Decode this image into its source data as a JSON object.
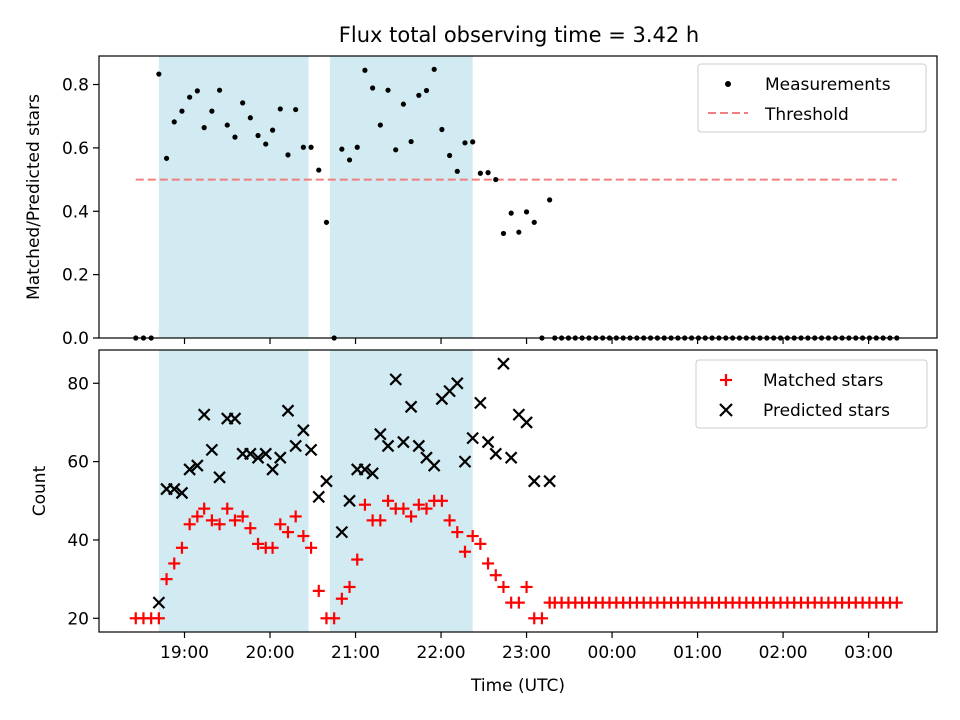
{
  "title": "Flux total observing time = 3.42 h",
  "colors": {
    "shade": "#add8e6",
    "threshold": "#f08080",
    "matched": "#ff0000",
    "predicted": "#000000",
    "measurement": "#000000"
  },
  "x_ticks": [
    "19:00",
    "20:00",
    "21:00",
    "22:00",
    "23:00",
    "00:00",
    "01:00",
    "02:00",
    "03:00"
  ],
  "chart_data": [
    {
      "type": "scatter",
      "ylabel": "Matched/Predicted stars",
      "xlabel": "",
      "x_unit": "hours after 18:00 UTC",
      "ylim": [
        0,
        0.89
      ],
      "yticks": [
        "0.0",
        "0.2",
        "0.4",
        "0.6",
        "0.8"
      ],
      "legend": [
        "Measurements",
        "Threshold"
      ],
      "legend_position": "top-right",
      "observing_windows": [
        [
          0.7,
          2.45
        ],
        [
          2.7,
          4.37
        ]
      ],
      "threshold": {
        "value": 0.5,
        "x_range": [
          0.43,
          9.33
        ]
      },
      "series": [
        {
          "name": "Measurements",
          "points": [
            [
              0.43,
              0.0
            ],
            [
              0.52,
              0.0
            ],
            [
              0.61,
              0.0
            ],
            [
              0.7,
              0.833
            ],
            [
              0.79,
              0.567
            ],
            [
              0.88,
              0.682
            ],
            [
              0.97,
              0.716
            ],
            [
              1.06,
              0.76
            ],
            [
              1.15,
              0.78
            ],
            [
              1.23,
              0.664
            ],
            [
              1.32,
              0.716
            ],
            [
              1.41,
              0.782
            ],
            [
              1.5,
              0.672
            ],
            [
              1.59,
              0.634
            ],
            [
              1.68,
              0.742
            ],
            [
              1.77,
              0.695
            ],
            [
              1.86,
              0.639
            ],
            [
              1.95,
              0.612
            ],
            [
              2.03,
              0.656
            ],
            [
              2.12,
              0.723
            ],
            [
              2.21,
              0.578
            ],
            [
              2.3,
              0.721
            ],
            [
              2.39,
              0.602
            ],
            [
              2.48,
              0.602
            ],
            [
              2.57,
              0.53
            ],
            [
              2.66,
              0.365
            ],
            [
              2.75,
              0.0
            ],
            [
              2.84,
              0.596
            ],
            [
              2.93,
              0.562
            ],
            [
              3.02,
              0.602
            ],
            [
              3.11,
              0.845
            ],
            [
              3.2,
              0.789
            ],
            [
              3.29,
              0.672
            ],
            [
              3.38,
              0.782
            ],
            [
              3.47,
              0.594
            ],
            [
              3.56,
              0.738
            ],
            [
              3.65,
              0.62
            ],
            [
              3.74,
              0.766
            ],
            [
              3.83,
              0.781
            ],
            [
              3.92,
              0.848
            ],
            [
              4.01,
              0.658
            ],
            [
              4.1,
              0.576
            ],
            [
              4.19,
              0.526
            ],
            [
              4.28,
              0.616
            ],
            [
              4.37,
              0.619
            ],
            [
              4.46,
              0.52
            ],
            [
              4.55,
              0.522
            ],
            [
              4.64,
              0.5
            ],
            [
              4.73,
              0.33
            ],
            [
              4.82,
              0.394
            ],
            [
              4.91,
              0.334
            ],
            [
              5.0,
              0.398
            ],
            [
              5.09,
              0.365
            ],
            [
              5.18,
              0.0
            ],
            [
              5.27,
              0.436
            ],
            [
              5.33,
              0.0
            ],
            [
              5.41,
              0.0
            ],
            [
              5.49,
              0.0
            ],
            [
              5.57,
              0.0
            ],
            [
              5.65,
              0.0
            ],
            [
              5.73,
              0.0
            ],
            [
              5.81,
              0.0
            ],
            [
              5.89,
              0.0
            ],
            [
              5.97,
              0.0
            ],
            [
              6.05,
              0.0
            ],
            [
              6.13,
              0.0
            ],
            [
              6.21,
              0.0
            ],
            [
              6.29,
              0.0
            ],
            [
              6.37,
              0.0
            ],
            [
              6.45,
              0.0
            ],
            [
              6.53,
              0.0
            ],
            [
              6.61,
              0.0
            ],
            [
              6.69,
              0.0
            ],
            [
              6.77,
              0.0
            ],
            [
              6.85,
              0.0
            ],
            [
              6.93,
              0.0
            ],
            [
              7.01,
              0.0
            ],
            [
              7.09,
              0.0
            ],
            [
              7.17,
              0.0
            ],
            [
              7.25,
              0.0
            ],
            [
              7.33,
              0.0
            ],
            [
              7.41,
              0.0
            ],
            [
              7.49,
              0.0
            ],
            [
              7.57,
              0.0
            ],
            [
              7.65,
              0.0
            ],
            [
              7.73,
              0.0
            ],
            [
              7.81,
              0.0
            ],
            [
              7.89,
              0.0
            ],
            [
              7.97,
              0.0
            ],
            [
              8.05,
              0.0
            ],
            [
              8.13,
              0.0
            ],
            [
              8.21,
              0.0
            ],
            [
              8.29,
              0.0
            ],
            [
              8.37,
              0.0
            ],
            [
              8.45,
              0.0
            ],
            [
              8.53,
              0.0
            ],
            [
              8.61,
              0.0
            ],
            [
              8.69,
              0.0
            ],
            [
              8.77,
              0.0
            ],
            [
              8.85,
              0.0
            ],
            [
              8.93,
              0.0
            ],
            [
              9.01,
              0.0
            ],
            [
              9.09,
              0.0
            ],
            [
              9.17,
              0.0
            ],
            [
              9.25,
              0.0
            ],
            [
              9.33,
              0.0
            ]
          ]
        }
      ]
    },
    {
      "type": "scatter",
      "ylabel": "Count",
      "xlabel": "Time (UTC)",
      "x_unit": "hours after 18:00 UTC",
      "ylim": [
        16.5,
        88.5
      ],
      "yticks": [
        "20",
        "40",
        "60",
        "80"
      ],
      "legend": [
        "Matched stars",
        "Predicted stars"
      ],
      "legend_position": "top-right",
      "observing_windows": [
        [
          0.7,
          2.45
        ],
        [
          2.7,
          4.37
        ]
      ],
      "series": [
        {
          "name": "Matched stars",
          "points": [
            [
              0.43,
              20
            ],
            [
              0.52,
              20
            ],
            [
              0.61,
              20
            ],
            [
              0.7,
              20
            ],
            [
              0.79,
              30
            ],
            [
              0.88,
              34
            ],
            [
              0.97,
              38
            ],
            [
              1.06,
              44
            ],
            [
              1.15,
              46
            ],
            [
              1.23,
              48
            ],
            [
              1.32,
              45
            ],
            [
              1.41,
              44
            ],
            [
              1.5,
              48
            ],
            [
              1.59,
              45
            ],
            [
              1.68,
              46
            ],
            [
              1.77,
              43
            ],
            [
              1.86,
              39
            ],
            [
              1.95,
              38
            ],
            [
              2.03,
              38
            ],
            [
              2.12,
              44
            ],
            [
              2.21,
              42
            ],
            [
              2.3,
              46
            ],
            [
              2.39,
              41
            ],
            [
              2.48,
              38
            ],
            [
              2.57,
              27
            ],
            [
              2.66,
              20
            ],
            [
              2.75,
              20
            ],
            [
              2.84,
              25
            ],
            [
              2.93,
              28
            ],
            [
              3.02,
              35
            ],
            [
              3.11,
              49
            ],
            [
              3.2,
              45
            ],
            [
              3.29,
              45
            ],
            [
              3.38,
              50
            ],
            [
              3.47,
              48
            ],
            [
              3.56,
              48
            ],
            [
              3.65,
              46
            ],
            [
              3.74,
              49
            ],
            [
              3.83,
              48
            ],
            [
              3.92,
              50
            ],
            [
              4.01,
              50
            ],
            [
              4.1,
              45
            ],
            [
              4.19,
              42
            ],
            [
              4.28,
              37
            ],
            [
              4.37,
              41
            ],
            [
              4.46,
              39
            ],
            [
              4.55,
              34
            ],
            [
              4.64,
              31
            ],
            [
              4.73,
              28
            ],
            [
              4.82,
              24
            ],
            [
              4.91,
              24
            ],
            [
              5.0,
              28
            ],
            [
              5.09,
              20
            ],
            [
              5.18,
              20
            ],
            [
              5.27,
              24
            ],
            [
              5.33,
              24
            ],
            [
              5.41,
              24
            ],
            [
              5.49,
              24
            ],
            [
              5.57,
              24
            ],
            [
              5.65,
              24
            ],
            [
              5.73,
              24
            ],
            [
              5.81,
              24
            ],
            [
              5.89,
              24
            ],
            [
              5.97,
              24
            ],
            [
              6.05,
              24
            ],
            [
              6.13,
              24
            ],
            [
              6.21,
              24
            ],
            [
              6.29,
              24
            ],
            [
              6.37,
              24
            ],
            [
              6.45,
              24
            ],
            [
              6.53,
              24
            ],
            [
              6.61,
              24
            ],
            [
              6.69,
              24
            ],
            [
              6.77,
              24
            ],
            [
              6.85,
              24
            ],
            [
              6.93,
              24
            ],
            [
              7.01,
              24
            ],
            [
              7.09,
              24
            ],
            [
              7.17,
              24
            ],
            [
              7.25,
              24
            ],
            [
              7.33,
              24
            ],
            [
              7.41,
              24
            ],
            [
              7.49,
              24
            ],
            [
              7.57,
              24
            ],
            [
              7.65,
              24
            ],
            [
              7.73,
              24
            ],
            [
              7.81,
              24
            ],
            [
              7.89,
              24
            ],
            [
              7.97,
              24
            ],
            [
              8.05,
              24
            ],
            [
              8.13,
              24
            ],
            [
              8.21,
              24
            ],
            [
              8.29,
              24
            ],
            [
              8.37,
              24
            ],
            [
              8.45,
              24
            ],
            [
              8.53,
              24
            ],
            [
              8.61,
              24
            ],
            [
              8.69,
              24
            ],
            [
              8.77,
              24
            ],
            [
              8.85,
              24
            ],
            [
              8.93,
              24
            ],
            [
              9.01,
              24
            ],
            [
              9.09,
              24
            ],
            [
              9.17,
              24
            ],
            [
              9.25,
              24
            ],
            [
              9.33,
              24
            ]
          ]
        },
        {
          "name": "Predicted stars",
          "points": [
            [
              0.7,
              24
            ],
            [
              0.79,
              53
            ],
            [
              0.88,
              53
            ],
            [
              0.97,
              52
            ],
            [
              1.06,
              58
            ],
            [
              1.15,
              59
            ],
            [
              1.23,
              72
            ],
            [
              1.32,
              63
            ],
            [
              1.41,
              56
            ],
            [
              1.5,
              71
            ],
            [
              1.59,
              71
            ],
            [
              1.68,
              62
            ],
            [
              1.77,
              62
            ],
            [
              1.86,
              61
            ],
            [
              1.95,
              62
            ],
            [
              2.03,
              58
            ],
            [
              2.12,
              61
            ],
            [
              2.21,
              73
            ],
            [
              2.3,
              64
            ],
            [
              2.39,
              68
            ],
            [
              2.48,
              63
            ],
            [
              2.57,
              51
            ],
            [
              2.66,
              55
            ],
            [
              2.84,
              42
            ],
            [
              2.93,
              50
            ],
            [
              3.02,
              58
            ],
            [
              3.11,
              58
            ],
            [
              3.2,
              57
            ],
            [
              3.29,
              67
            ],
            [
              3.38,
              64
            ],
            [
              3.47,
              81
            ],
            [
              3.56,
              65
            ],
            [
              3.65,
              74
            ],
            [
              3.74,
              64
            ],
            [
              3.83,
              61
            ],
            [
              3.92,
              59
            ],
            [
              4.01,
              76
            ],
            [
              4.1,
              78
            ],
            [
              4.19,
              80
            ],
            [
              4.28,
              60
            ],
            [
              4.37,
              66
            ],
            [
              4.46,
              75
            ],
            [
              4.55,
              65
            ],
            [
              4.64,
              62
            ],
            [
              4.73,
              85
            ],
            [
              4.82,
              61
            ],
            [
              4.91,
              72
            ],
            [
              5.0,
              70
            ],
            [
              5.09,
              55
            ],
            [
              5.27,
              55
            ]
          ]
        }
      ]
    }
  ]
}
